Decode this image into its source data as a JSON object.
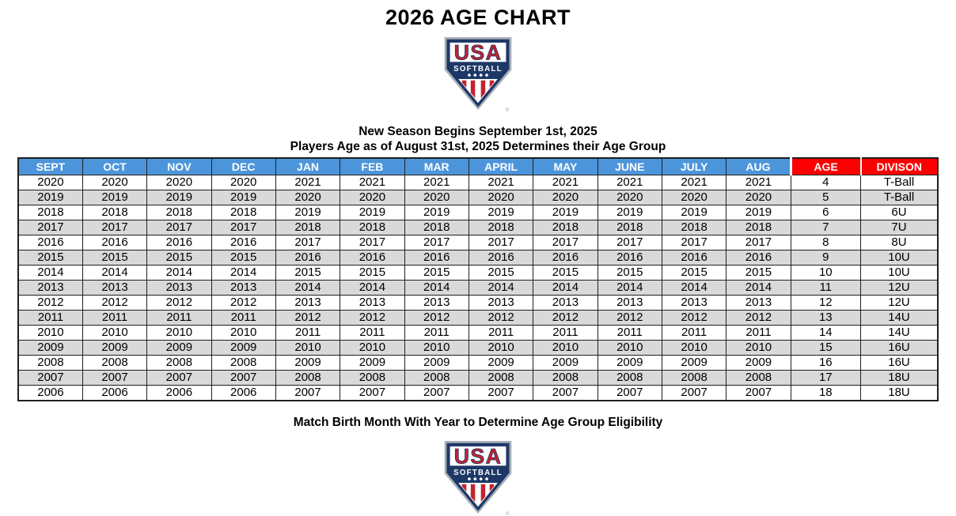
{
  "page": {
    "title": "2026 AGE CHART",
    "subtitle_line1": "New Season Begins September 1st, 2025",
    "subtitle_line2": "Players Age as of August 31st, 2025 Determines their Age Group",
    "footer_note": "Match Birth Month With Year to Determine Age Group Eligibility"
  },
  "logo": {
    "icon": "usa-softball-home-plate-shield-icon",
    "wordmark_top": "USA",
    "wordmark_bottom": "SOFTBALL",
    "registered_mark": "®",
    "colors": {
      "navy": "#1D3867",
      "red": "#C5222E",
      "silver": "#A9AFB7"
    }
  },
  "colors": {
    "month_header_bg": "#4D95DB",
    "month_header_text": "#FFFFFF",
    "age_division_header_bg": "#FA0000",
    "age_division_header_text": "#FFFFFF",
    "row_alt_bg": "#D9D9D9",
    "grid_border": "#1F1F1F"
  },
  "chart_data": {
    "type": "table",
    "title": "2026 AGE CHART",
    "columns": [
      "SEPT",
      "OCT",
      "NOV",
      "DEC",
      "JAN",
      "FEB",
      "MAR",
      "APRIL",
      "MAY",
      "JUNE",
      "JULY",
      "AUG",
      "AGE",
      "DIVISON"
    ],
    "rows": [
      [
        "2020",
        "2020",
        "2020",
        "2020",
        "2021",
        "2021",
        "2021",
        "2021",
        "2021",
        "2021",
        "2021",
        "2021",
        "4",
        "T-Ball"
      ],
      [
        "2019",
        "2019",
        "2019",
        "2019",
        "2020",
        "2020",
        "2020",
        "2020",
        "2020",
        "2020",
        "2020",
        "2020",
        "5",
        "T-Ball"
      ],
      [
        "2018",
        "2018",
        "2018",
        "2018",
        "2019",
        "2019",
        "2019",
        "2019",
        "2019",
        "2019",
        "2019",
        "2019",
        "6",
        "6U"
      ],
      [
        "2017",
        "2017",
        "2017",
        "2017",
        "2018",
        "2018",
        "2018",
        "2018",
        "2018",
        "2018",
        "2018",
        "2018",
        "7",
        "7U"
      ],
      [
        "2016",
        "2016",
        "2016",
        "2016",
        "2017",
        "2017",
        "2017",
        "2017",
        "2017",
        "2017",
        "2017",
        "2017",
        "8",
        "8U"
      ],
      [
        "2015",
        "2015",
        "2015",
        "2015",
        "2016",
        "2016",
        "2016",
        "2016",
        "2016",
        "2016",
        "2016",
        "2016",
        "9",
        "10U"
      ],
      [
        "2014",
        "2014",
        "2014",
        "2014",
        "2015",
        "2015",
        "2015",
        "2015",
        "2015",
        "2015",
        "2015",
        "2015",
        "10",
        "10U"
      ],
      [
        "2013",
        "2013",
        "2013",
        "2013",
        "2014",
        "2014",
        "2014",
        "2014",
        "2014",
        "2014",
        "2014",
        "2014",
        "11",
        "12U"
      ],
      [
        "2012",
        "2012",
        "2012",
        "2012",
        "2013",
        "2013",
        "2013",
        "2013",
        "2013",
        "2013",
        "2013",
        "2013",
        "12",
        "12U"
      ],
      [
        "2011",
        "2011",
        "2011",
        "2011",
        "2012",
        "2012",
        "2012",
        "2012",
        "2012",
        "2012",
        "2012",
        "2012",
        "13",
        "14U"
      ],
      [
        "2010",
        "2010",
        "2010",
        "2010",
        "2011",
        "2011",
        "2011",
        "2011",
        "2011",
        "2011",
        "2011",
        "2011",
        "14",
        "14U"
      ],
      [
        "2009",
        "2009",
        "2009",
        "2009",
        "2010",
        "2010",
        "2010",
        "2010",
        "2010",
        "2010",
        "2010",
        "2010",
        "15",
        "16U"
      ],
      [
        "2008",
        "2008",
        "2008",
        "2008",
        "2009",
        "2009",
        "2009",
        "2009",
        "2009",
        "2009",
        "2009",
        "2009",
        "16",
        "16U"
      ],
      [
        "2007",
        "2007",
        "2007",
        "2007",
        "2008",
        "2008",
        "2008",
        "2008",
        "2008",
        "2008",
        "2008",
        "2008",
        "17",
        "18U"
      ],
      [
        "2006",
        "2006",
        "2006",
        "2006",
        "2007",
        "2007",
        "2007",
        "2007",
        "2007",
        "2007",
        "2007",
        "2007",
        "18",
        "18U"
      ]
    ],
    "layout": {
      "month_columns": 12,
      "striped_rows": "alternating gray starting on second data row",
      "header_style": "months blue, age and division red"
    }
  }
}
